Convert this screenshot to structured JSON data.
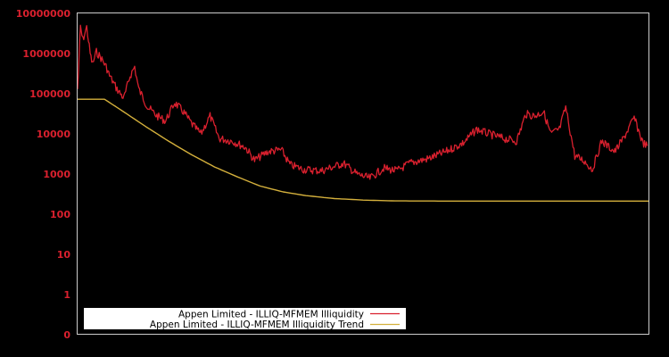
{
  "colors": {
    "background": "#000000",
    "frame": "#cccccc",
    "tick_label": "#d9202e",
    "series_illiquidity": "#d9202e",
    "series_trend": "#d4b03c",
    "legend_bg": "#ffffff",
    "legend_text": "#000000"
  },
  "legend": {
    "items": [
      {
        "label": "Appen Limited - ILLIQ-MFMEM Illiquidity",
        "color": "#d9202e"
      },
      {
        "label": "Appen Limited - ILLIQ-MFMEM Illiquidity Trend",
        "color": "#d4b03c"
      }
    ]
  },
  "chart_data": {
    "type": "line",
    "title": "",
    "xlabel": "",
    "ylabel": "",
    "yscale": "log",
    "ylim": [
      0,
      10000000
    ],
    "yticks": [
      "10000000",
      "1000000",
      "100000",
      "10000",
      "1000",
      "100",
      "10",
      "1",
      "0"
    ],
    "xticks": [],
    "grid": false,
    "legend_position": "lower left",
    "x_note": "x is relative position across plot width (0 = start, 1 = end); no x tick labels shown",
    "series": [
      {
        "name": "Appen Limited - ILLIQ-MFMEM Illiquidity",
        "color": "#d9202e",
        "points": [
          [
            0.0,
            130000
          ],
          [
            0.005,
            4500000
          ],
          [
            0.009,
            2200000
          ],
          [
            0.016,
            4500000
          ],
          [
            0.022,
            1000000
          ],
          [
            0.026,
            540000
          ],
          [
            0.033,
            1100000
          ],
          [
            0.041,
            780000
          ],
          [
            0.05,
            470000
          ],
          [
            0.056,
            280000
          ],
          [
            0.069,
            130000
          ],
          [
            0.081,
            77000
          ],
          [
            0.092,
            280000
          ],
          [
            0.1,
            470000
          ],
          [
            0.107,
            130000
          ],
          [
            0.123,
            46000
          ],
          [
            0.139,
            28000
          ],
          [
            0.154,
            21000
          ],
          [
            0.17,
            60000
          ],
          [
            0.185,
            36000
          ],
          [
            0.201,
            17000
          ],
          [
            0.216,
            10000
          ],
          [
            0.232,
            28000
          ],
          [
            0.248,
            7700
          ],
          [
            0.271,
            6600
          ],
          [
            0.294,
            4600
          ],
          [
            0.31,
            2200
          ],
          [
            0.333,
            3600
          ],
          [
            0.357,
            4000
          ],
          [
            0.372,
            1700
          ],
          [
            0.396,
            1300
          ],
          [
            0.427,
            1200
          ],
          [
            0.466,
            1850
          ],
          [
            0.489,
            1000
          ],
          [
            0.512,
            780
          ],
          [
            0.536,
            1400
          ],
          [
            0.559,
            1200
          ],
          [
            0.583,
            1900
          ],
          [
            0.614,
            2400
          ],
          [
            0.645,
            3600
          ],
          [
            0.676,
            6000
          ],
          [
            0.699,
            13000
          ],
          [
            0.72,
            10000
          ],
          [
            0.746,
            7700
          ],
          [
            0.769,
            6600
          ],
          [
            0.785,
            31000
          ],
          [
            0.801,
            28000
          ],
          [
            0.816,
            36000
          ],
          [
            0.829,
            10000
          ],
          [
            0.844,
            13000
          ],
          [
            0.855,
            46000
          ],
          [
            0.871,
            2800
          ],
          [
            0.886,
            2200
          ],
          [
            0.902,
            1300
          ],
          [
            0.918,
            6600
          ],
          [
            0.941,
            3600
          ],
          [
            0.956,
            7700
          ],
          [
            0.975,
            25000
          ],
          [
            0.99,
            6000
          ],
          [
            0.998,
            5000
          ]
        ]
      },
      {
        "name": "Appen Limited - ILLIQ-MFMEM Illiquidity Trend",
        "color": "#d4b03c",
        "points": [
          [
            0.0,
            73000
          ],
          [
            0.047,
            73000
          ],
          [
            0.08,
            36000
          ],
          [
            0.12,
            15000
          ],
          [
            0.16,
            6500
          ],
          [
            0.2,
            3000
          ],
          [
            0.24,
            1500
          ],
          [
            0.28,
            850
          ],
          [
            0.32,
            500
          ],
          [
            0.36,
            360
          ],
          [
            0.4,
            290
          ],
          [
            0.45,
            245
          ],
          [
            0.5,
            225
          ],
          [
            0.55,
            215
          ],
          [
            0.6,
            213
          ],
          [
            0.7,
            212
          ],
          [
            0.8,
            212
          ],
          [
            0.9,
            212
          ],
          [
            1.0,
            212
          ]
        ]
      }
    ]
  }
}
